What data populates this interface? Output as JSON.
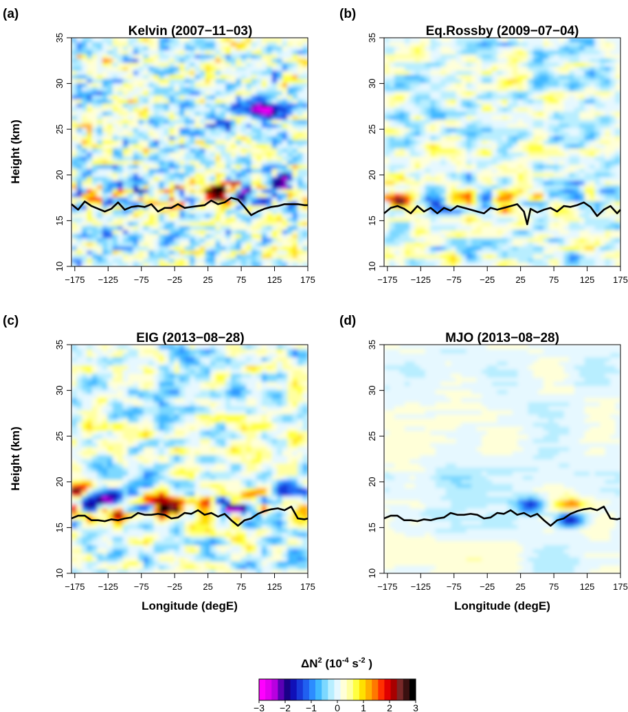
{
  "chart_data": [
    {
      "type": "heatmap",
      "panel_label": "(a)",
      "title": "Kelvin (2007−11−03)",
      "xlabel": "",
      "ylabel": "Height (km)",
      "xlim": [
        -180,
        175
      ],
      "ylim": [
        10,
        35
      ],
      "xticks": [
        "−175",
        "−125",
        "−75",
        "−25",
        "25",
        "75",
        "125",
        "175"
      ],
      "yticks": [
        "10",
        "15",
        "20",
        "25",
        "30",
        "35"
      ],
      "tropopause": {
        "lon": [
          -180,
          -170,
          -160,
          -150,
          -140,
          -130,
          -120,
          -110,
          -100,
          -90,
          -80,
          -70,
          -60,
          -50,
          -40,
          -30,
          -20,
          -10,
          0,
          10,
          20,
          30,
          40,
          50,
          60,
          70,
          80,
          90,
          100,
          110,
          120,
          130,
          140,
          150,
          160,
          170,
          175
        ],
        "height_km": [
          16.8,
          16.2,
          17.1,
          16.6,
          16.3,
          16.0,
          16.3,
          17.0,
          16.2,
          16.5,
          16.6,
          16.5,
          16.8,
          16.0,
          16.4,
          16.4,
          16.8,
          16.4,
          16.5,
          16.6,
          16.7,
          17.2,
          16.8,
          17.0,
          17.5,
          17.3,
          16.5,
          15.6,
          16.0,
          16.3,
          16.5,
          16.6,
          16.8,
          16.8,
          16.8,
          16.7,
          16.7
        ]
      },
      "features": [
        {
          "lon": 100,
          "height_km": 27.5,
          "dN2": -2.0
        },
        {
          "lon": 120,
          "height_km": 27.0,
          "dN2": -1.8
        },
        {
          "lon": 40,
          "height_km": 25.5,
          "dN2": -1.2
        },
        {
          "lon": 70,
          "height_km": 23.0,
          "dN2": 1.0
        },
        {
          "lon": 45,
          "height_km": 18.5,
          "dN2": 1.8
        },
        {
          "lon": 50,
          "height_km": 17.5,
          "dN2": 2.2
        },
        {
          "lon": 80,
          "height_km": 17.5,
          "dN2": -2.5
        },
        {
          "lon": 140,
          "height_km": 19.5,
          "dN2": -1.8
        },
        {
          "lon": -150,
          "height_km": 32.0,
          "dN2": 0.8
        },
        {
          "lon": -160,
          "height_km": 29.0,
          "dN2": -1.0
        }
      ]
    },
    {
      "type": "heatmap",
      "panel_label": "(b)",
      "title": "Eq.Rossby (2009−07−04)",
      "xlabel": "",
      "ylabel": "",
      "xlim": [
        -180,
        175
      ],
      "ylim": [
        10,
        35
      ],
      "xticks": [
        "−175",
        "−125",
        "−75",
        "−25",
        "25",
        "75",
        "125",
        "175"
      ],
      "yticks": [
        "10",
        "15",
        "20",
        "25",
        "30",
        "35"
      ],
      "tropopause": {
        "lon": [
          -180,
          -170,
          -160,
          -150,
          -140,
          -130,
          -120,
          -110,
          -100,
          -90,
          -80,
          -70,
          -60,
          -50,
          -40,
          -30,
          -20,
          -10,
          0,
          10,
          20,
          30,
          35,
          40,
          50,
          60,
          70,
          80,
          90,
          100,
          110,
          120,
          130,
          140,
          150,
          160,
          170,
          175
        ],
        "height_km": [
          15.8,
          16.4,
          16.6,
          16.3,
          15.8,
          16.6,
          16.0,
          16.4,
          15.8,
          16.4,
          16.1,
          16.6,
          16.4,
          16.2,
          16.0,
          15.8,
          16.4,
          16.2,
          16.4,
          16.6,
          16.8,
          16.0,
          14.6,
          16.3,
          15.9,
          16.2,
          16.4,
          16.0,
          16.6,
          16.5,
          16.7,
          17.0,
          16.5,
          15.5,
          16.2,
          16.6,
          15.8,
          16.2
        ]
      },
      "features": [
        {
          "lon": -160,
          "height_km": 17.5,
          "dN2": 1.5
        },
        {
          "lon": 0,
          "height_km": 17.0,
          "dN2": 1.2
        },
        {
          "lon": 150,
          "height_km": 32.0,
          "dN2": -1.0
        },
        {
          "lon": -100,
          "height_km": 16.5,
          "dN2": -1.5
        }
      ]
    },
    {
      "type": "heatmap",
      "panel_label": "(c)",
      "title": "EIG (2013−08−28)",
      "xlabel": "Longitude (degE)",
      "ylabel": "Height (km)",
      "xlim": [
        -180,
        175
      ],
      "ylim": [
        10,
        35
      ],
      "xticks": [
        "−175",
        "−125",
        "−75",
        "−25",
        "25",
        "75",
        "125",
        "175"
      ],
      "yticks": [
        "10",
        "15",
        "20",
        "25",
        "30",
        "35"
      ],
      "tropopause": {
        "lon": [
          -180,
          -170,
          -160,
          -150,
          -140,
          -130,
          -120,
          -110,
          -100,
          -90,
          -80,
          -70,
          -60,
          -50,
          -40,
          -30,
          -20,
          -10,
          0,
          10,
          20,
          30,
          40,
          50,
          60,
          70,
          80,
          90,
          100,
          110,
          120,
          130,
          140,
          150,
          160,
          170,
          175
        ],
        "height_km": [
          16.0,
          16.3,
          16.3,
          15.8,
          15.8,
          15.7,
          15.9,
          15.8,
          16.0,
          16.1,
          16.6,
          16.4,
          16.4,
          16.5,
          16.4,
          16.0,
          16.1,
          16.6,
          16.5,
          16.9,
          16.4,
          16.6,
          16.2,
          16.5,
          15.8,
          15.2,
          15.8,
          16.0,
          16.5,
          16.8,
          17.0,
          17.1,
          16.9,
          17.3,
          16.0,
          15.9,
          16.0
        ]
      },
      "features": [
        {
          "lon": -170,
          "height_km": 19.0,
          "dN2": 1.8
        },
        {
          "lon": -120,
          "height_km": 18.5,
          "dN2": -1.8
        },
        {
          "lon": -40,
          "height_km": 17.0,
          "dN2": 1.8
        },
        {
          "lon": 60,
          "height_km": 17.0,
          "dN2": -1.8
        },
        {
          "lon": 150,
          "height_km": 19.0,
          "dN2": -1.8
        }
      ]
    },
    {
      "type": "heatmap",
      "panel_label": "(d)",
      "title": "MJO (2013−08−28)",
      "xlabel": "Longitude (degE)",
      "ylabel": "",
      "xlim": [
        -180,
        175
      ],
      "ylim": [
        10,
        35
      ],
      "xticks": [
        "−175",
        "−125",
        "−75",
        "−25",
        "25",
        "75",
        "125",
        "175"
      ],
      "yticks": [
        "10",
        "15",
        "20",
        "25",
        "30",
        "35"
      ],
      "tropopause": {
        "lon": [
          -180,
          -170,
          -160,
          -150,
          -140,
          -130,
          -120,
          -110,
          -100,
          -90,
          -80,
          -70,
          -60,
          -50,
          -40,
          -30,
          -20,
          -10,
          0,
          10,
          20,
          30,
          40,
          50,
          60,
          70,
          80,
          90,
          100,
          110,
          120,
          130,
          140,
          150,
          160,
          170,
          175
        ],
        "height_km": [
          16.0,
          16.3,
          16.3,
          15.8,
          15.8,
          15.7,
          15.9,
          15.8,
          16.0,
          16.1,
          16.6,
          16.4,
          16.4,
          16.5,
          16.4,
          16.0,
          16.1,
          16.6,
          16.5,
          16.9,
          16.4,
          16.6,
          16.2,
          16.5,
          15.8,
          15.2,
          15.8,
          16.0,
          16.5,
          16.8,
          17.0,
          17.1,
          16.9,
          17.3,
          16.0,
          15.9,
          16.0
        ]
      },
      "features": [
        {
          "lon": 40,
          "height_km": 17.5,
          "dN2": -1.5
        },
        {
          "lon": 100,
          "height_km": 17.5,
          "dN2": 1.2
        },
        {
          "lon": 100,
          "height_km": 16.0,
          "dN2": -2.0
        }
      ]
    }
  ],
  "colorbar": {
    "title_main": "ΔN",
    "title_sup": "2",
    "title_unit_a": " (10",
    "title_unit_a_sup": "-4",
    "title_unit_b": " s",
    "title_unit_b_sup": "-2",
    "title_close": " )",
    "range": [
      -3,
      3
    ],
    "ticks": [
      "−3",
      "−2",
      "−1",
      "0",
      "1",
      "2",
      "3"
    ],
    "colors": [
      "#ff00ff",
      "#e000f0",
      "#b800e0",
      "#5a00b4",
      "#1a0088",
      "#1010b8",
      "#1838d8",
      "#2060f0",
      "#2c8cff",
      "#40b8ff",
      "#7cd8ff",
      "#b8eeff",
      "#e6f8ff",
      "#ffffd8",
      "#ffffa0",
      "#ffff40",
      "#ffe000",
      "#ffb000",
      "#ff7800",
      "#ff3000",
      "#e00000",
      "#a80000",
      "#782828",
      "#3a1010",
      "#000000"
    ]
  }
}
